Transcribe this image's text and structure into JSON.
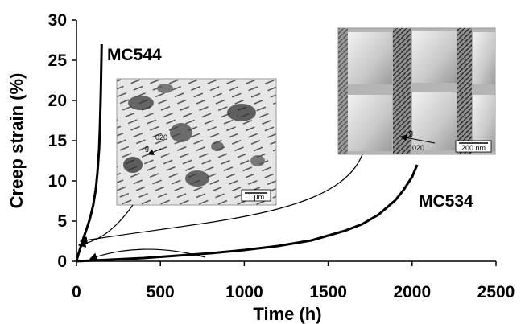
{
  "chart_data": {
    "type": "line",
    "xlabel": "Time (h)",
    "ylabel": "Creep strain (%)",
    "xlim": [
      0,
      2500
    ],
    "ylim": [
      0,
      30
    ],
    "x_ticks": [
      0,
      500,
      1000,
      1500,
      2000,
      2500
    ],
    "y_ticks": [
      0,
      5,
      10,
      15,
      20,
      25,
      30
    ],
    "grid": false,
    "series": [
      {
        "name": "MC544",
        "x": [
          0,
          10,
          25,
          40,
          60,
          80,
          100,
          115,
          125,
          135,
          140,
          145,
          150
        ],
        "y": [
          0.0,
          0.8,
          1.8,
          2.8,
          4.0,
          5.3,
          7.0,
          9.0,
          11.0,
          14.0,
          17.0,
          21.0,
          27.0
        ]
      },
      {
        "name": "MC534",
        "x": [
          0,
          200,
          400,
          600,
          800,
          1000,
          1200,
          1400,
          1600,
          1700,
          1800,
          1900,
          1950,
          2000,
          2030
        ],
        "y": [
          0.0,
          0.2,
          0.4,
          0.7,
          1.0,
          1.4,
          1.9,
          2.6,
          3.8,
          4.6,
          5.8,
          7.6,
          8.9,
          10.5,
          12.0
        ]
      }
    ],
    "annotations": {
      "micrograph_left": {
        "direction_label": "g",
        "plane_label": "020",
        "scale_bar": "1 µm"
      },
      "micrograph_right": {
        "direction_label": "g",
        "plane_label": "020",
        "scale_bar": "200 nm"
      }
    }
  }
}
